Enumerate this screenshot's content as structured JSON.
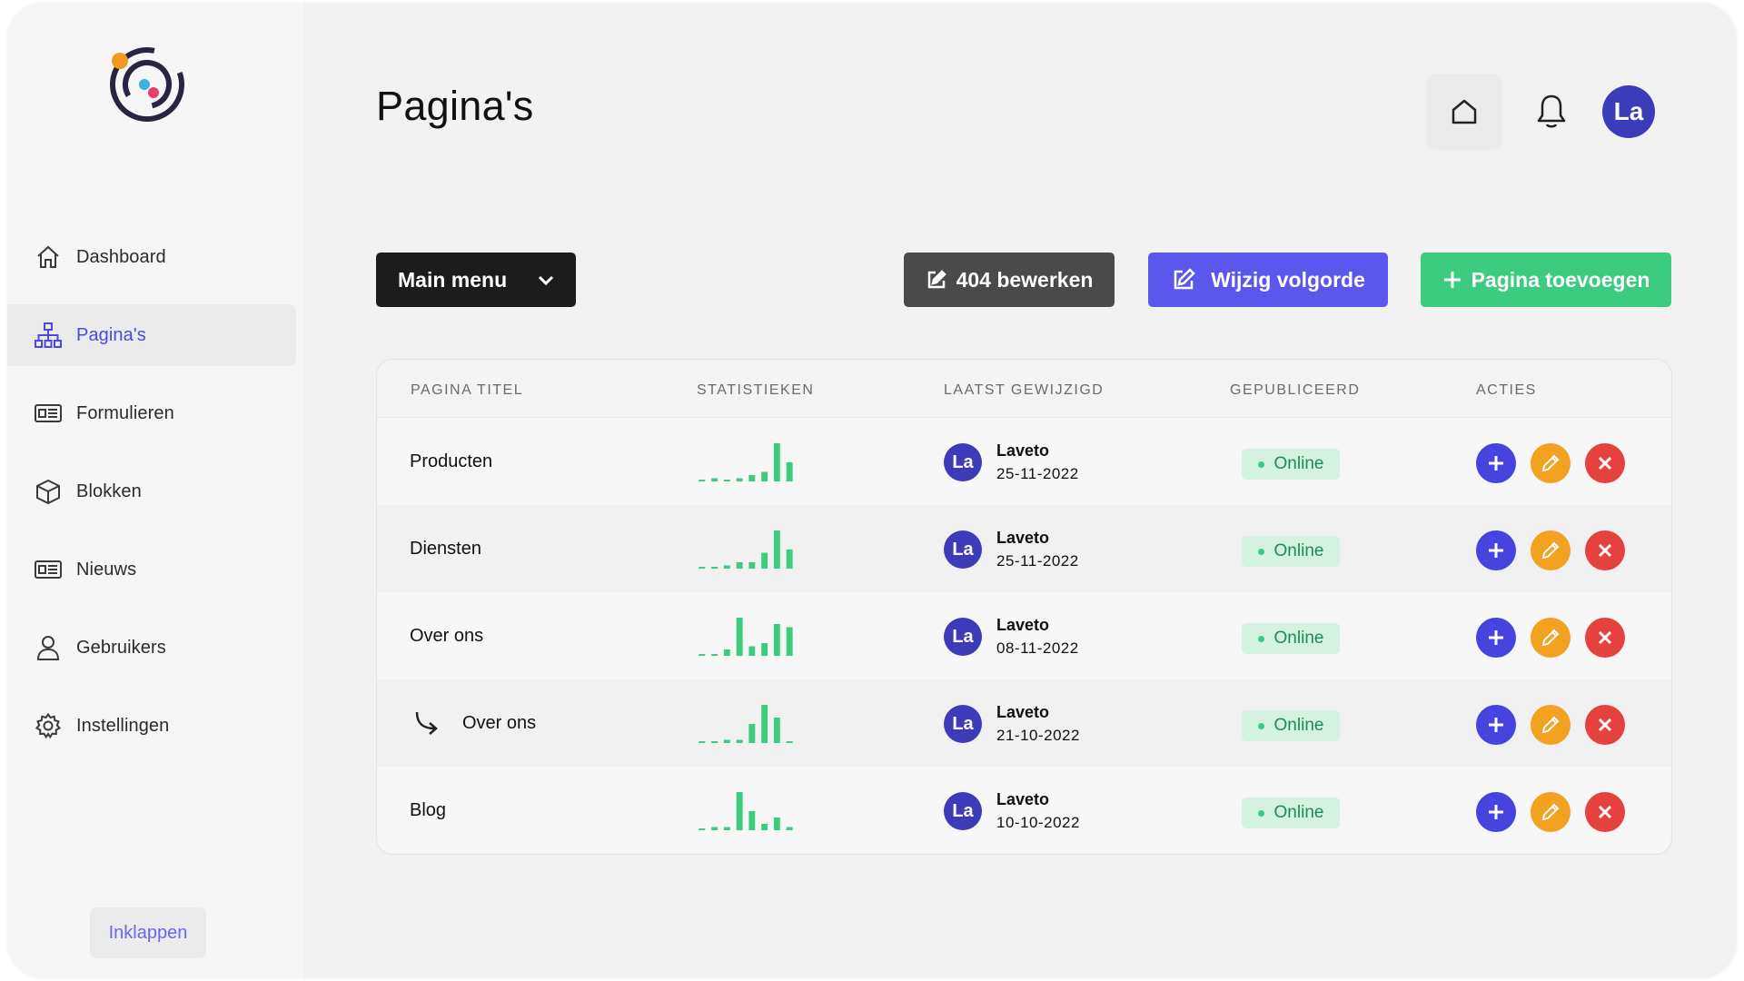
{
  "brand": {
    "logo_icon": "orbit-logo"
  },
  "sidebar": {
    "items": [
      {
        "label": "Dashboard",
        "icon": "home-icon",
        "active": false
      },
      {
        "label": "Pagina's",
        "icon": "sitemap-icon",
        "active": true
      },
      {
        "label": "Formulieren",
        "icon": "form-icon",
        "active": false
      },
      {
        "label": "Blokken",
        "icon": "cube-icon",
        "active": false
      },
      {
        "label": "Nieuws",
        "icon": "newspaper-icon",
        "active": false
      },
      {
        "label": "Gebruikers",
        "icon": "user-icon",
        "active": false
      },
      {
        "label": "Instellingen",
        "icon": "gear-icon",
        "active": false
      }
    ],
    "collapse_label": "Inklappen"
  },
  "header": {
    "title": "Pagina's",
    "avatar_initials": "La"
  },
  "toolbar": {
    "menu_select": "Main menu",
    "edit_404_label": "404 bewerken",
    "reorder_label": "Wijzig volgorde",
    "add_page_label": "Pagina toevoegen"
  },
  "table": {
    "columns": {
      "title": "PAGINA TITEL",
      "stats": "STATISTIEKEN",
      "modified": "LAATST GEWIJZIGD",
      "published": "GEPUBLICEERD",
      "actions": "ACTIES"
    },
    "rows": [
      {
        "title": "Producten",
        "is_subpage": false,
        "stats": [
          0,
          1,
          0,
          1,
          2,
          3,
          12,
          6
        ],
        "author_initials": "La",
        "author": "Laveto",
        "date": "25-11-2022",
        "status": "Online"
      },
      {
        "title": "Diensten",
        "is_subpage": false,
        "stats": [
          0,
          0,
          1,
          2,
          2,
          5,
          12,
          6
        ],
        "author_initials": "La",
        "author": "Laveto",
        "date": "25-11-2022",
        "status": "Online"
      },
      {
        "title": "Over ons",
        "is_subpage": false,
        "stats": [
          0,
          0,
          2,
          12,
          3,
          4,
          10,
          9
        ],
        "author_initials": "La",
        "author": "Laveto",
        "date": "08-11-2022",
        "status": "Online"
      },
      {
        "title": "Over ons",
        "is_subpage": true,
        "stats": [
          0,
          0,
          1,
          1,
          6,
          12,
          8,
          0
        ],
        "author_initials": "La",
        "author": "Laveto",
        "date": "21-10-2022",
        "status": "Online"
      },
      {
        "title": "Blog",
        "is_subpage": false,
        "stats": [
          0,
          1,
          1,
          12,
          6,
          2,
          4,
          1
        ],
        "author_initials": "La",
        "author": "Laveto",
        "date": "10-10-2022",
        "status": "Online"
      }
    ]
  },
  "colors": {
    "accent": "#4b48e6",
    "success": "#3dcb7f",
    "warning": "#f2a122",
    "danger": "#e7413f",
    "avatar": "#3c3cba"
  }
}
